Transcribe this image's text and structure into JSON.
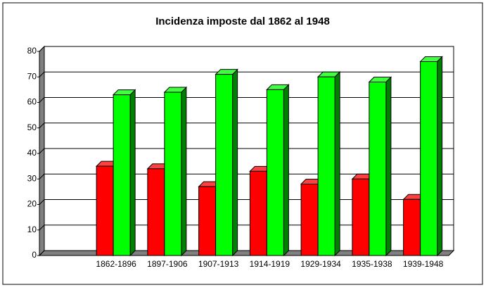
{
  "chart_data": {
    "type": "bar3d",
    "title": "Incidenza imposte dal 1862 al 1948",
    "categories": [
      null,
      "1862-1896",
      "1897-1906",
      "1907-1913",
      "1914-1919",
      "1929-1934",
      "1935-1938",
      "1939-1948"
    ],
    "series": [
      {
        "color": "#ff0000",
        "values": [
          null,
          35,
          34,
          27,
          33,
          28,
          30,
          22
        ]
      },
      {
        "color": "#00ff00",
        "values": [
          null,
          63,
          64,
          71,
          65,
          70,
          68,
          76
        ]
      }
    ],
    "ylim": [
      0,
      80
    ],
    "yticks": [
      0,
      10,
      20,
      30,
      40,
      50,
      60,
      70,
      80
    ],
    "grid": true
  }
}
